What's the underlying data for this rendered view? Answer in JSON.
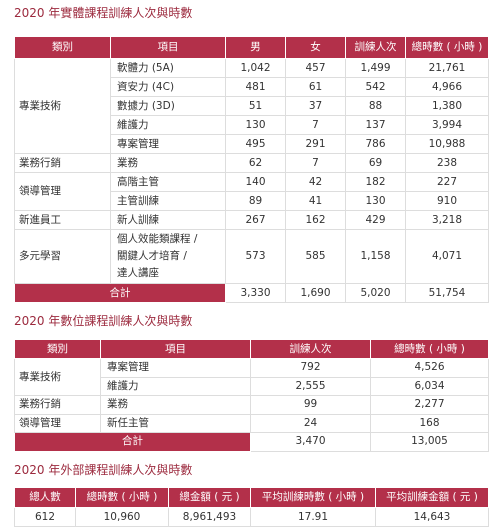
{
  "sections": [
    {
      "title": "2020 年實體課程訓練人次與時數",
      "headers": [
        "類別",
        "項目",
        "男",
        "女",
        "訓練人次",
        "總時數 ( 小時 )"
      ],
      "groups": [
        {
          "category": "專業技術",
          "rows": [
            {
              "item": "軟體力 (5A)",
              "values": [
                "1,042",
                "457",
                "1,499",
                "21,761"
              ]
            },
            {
              "item": "資安力 (4C)",
              "values": [
                "481",
                "61",
                "542",
                "4,966"
              ]
            },
            {
              "item": "數據力 (3D)",
              "values": [
                "51",
                "37",
                "88",
                "1,380"
              ]
            },
            {
              "item": "維護力",
              "values": [
                "130",
                "7",
                "137",
                "3,994"
              ]
            },
            {
              "item": "專案管理",
              "values": [
                "495",
                "291",
                "786",
                "10,988"
              ]
            }
          ]
        },
        {
          "category": "業務行銷",
          "rows": [
            {
              "item": "業務",
              "values": [
                "62",
                "7",
                "69",
                "238"
              ]
            }
          ]
        },
        {
          "category": "領導管理",
          "rows": [
            {
              "item": "高階主管",
              "values": [
                "140",
                "42",
                "182",
                "227"
              ]
            },
            {
              "item": "主管訓練",
              "values": [
                "89",
                "41",
                "130",
                "910"
              ]
            }
          ]
        },
        {
          "category": "新進員工",
          "rows": [
            {
              "item": "新人訓練",
              "values": [
                "267",
                "162",
                "429",
                "3,218"
              ]
            }
          ]
        },
        {
          "category": "多元學習",
          "rows": [
            {
              "item": "個人效能類課程 /\n關鍵人才培育 /\n達人講座",
              "values": [
                "573",
                "585",
                "1,158",
                "4,071"
              ]
            }
          ]
        }
      ],
      "total": {
        "label": "合計",
        "values": [
          "3,330",
          "1,690",
          "5,020",
          "51,754"
        ]
      }
    },
    {
      "title": "2020 年數位課程訓練人次與時數",
      "headers": [
        "類別",
        "項目",
        "訓練人次",
        "總時數 ( 小時 )"
      ],
      "groups": [
        {
          "category": "專業技術",
          "rows": [
            {
              "item": "專案管理",
              "values": [
                "792",
                "4,526"
              ]
            },
            {
              "item": "維護力",
              "values": [
                "2,555",
                "6,034"
              ]
            }
          ]
        },
        {
          "category": "業務行銷",
          "rows": [
            {
              "item": "業務",
              "values": [
                "99",
                "2,277"
              ]
            }
          ]
        },
        {
          "category": "領導管理",
          "rows": [
            {
              "item": "新任主管",
              "values": [
                "24",
                "168"
              ]
            }
          ]
        }
      ],
      "total": {
        "label": "合計",
        "values": [
          "3,470",
          "13,005"
        ]
      }
    },
    {
      "title": "2020 年外部課程訓練人次與時數",
      "headers": [
        "總人數",
        "總時數 ( 小時 )",
        "總金額 ( 元 )",
        "平均訓練時數 ( 小時 )",
        "平均訓練金額 ( 元 )"
      ],
      "values": [
        "612",
        "10,960",
        "8,961,493",
        "17.91",
        "14,643"
      ]
    }
  ]
}
